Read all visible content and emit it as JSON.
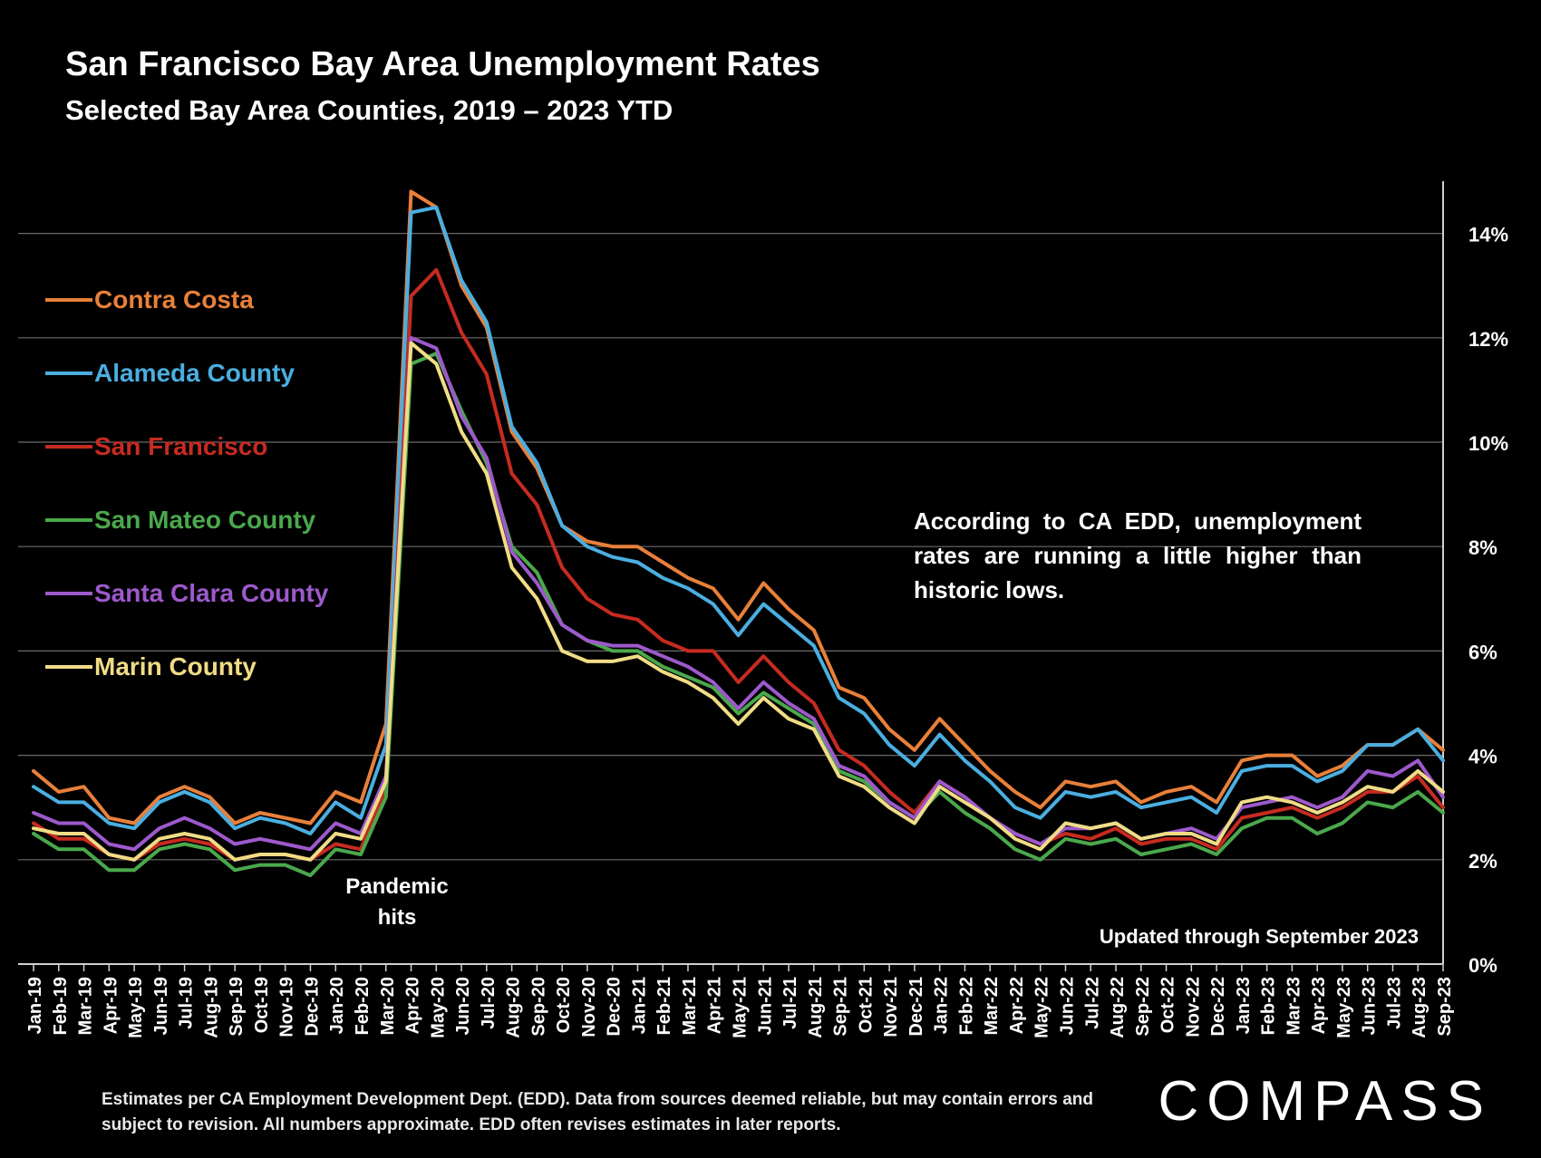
{
  "chart_data": {
    "type": "line",
    "title": "San Francisco Bay Area Unemployment Rates",
    "subtitle": "Selected Bay Area Counties, 2019 – 2023 YTD",
    "x": [
      "Jan-19",
      "Feb-19",
      "Mar-19",
      "Apr-19",
      "May-19",
      "Jun-19",
      "Jul-19",
      "Aug-19",
      "Sep-19",
      "Oct-19",
      "Nov-19",
      "Dec-19",
      "Jan-20",
      "Feb-20",
      "Mar-20",
      "Apr-20",
      "May-20",
      "Jun-20",
      "Jul-20",
      "Aug-20",
      "Sep-20",
      "Oct-20",
      "Nov-20",
      "Dec-20",
      "Jan-21",
      "Feb-21",
      "Mar-21",
      "Apr-21",
      "May-21",
      "Jun-21",
      "Jul-21",
      "Aug-21",
      "Sep-21",
      "Oct-21",
      "Nov-21",
      "Dec-21",
      "Jan-22",
      "Feb-22",
      "Mar-22",
      "Apr-22",
      "May-22",
      "Jun-22",
      "Jul-22",
      "Aug-22",
      "Sep-22",
      "Oct-22",
      "Nov-22",
      "Dec-22",
      "Jan-23",
      "Feb-23",
      "Mar-23",
      "Apr-23",
      "May-23",
      "Jun-23",
      "Jul-23",
      "Aug-23",
      "Sep-23"
    ],
    "y_ticks": [
      "0%",
      "2%",
      "4%",
      "6%",
      "8%",
      "10%",
      "12%",
      "14%"
    ],
    "ylim": [
      0,
      15
    ],
    "grid": true,
    "legend_position": "left",
    "series": [
      {
        "name": "Contra Costa",
        "color": "#e8803a",
        "values": [
          3.7,
          3.3,
          3.4,
          2.8,
          2.7,
          3.2,
          3.4,
          3.2,
          2.7,
          2.9,
          2.8,
          2.7,
          3.3,
          3.1,
          4.6,
          14.8,
          14.5,
          13.0,
          12.2,
          10.2,
          9.5,
          8.4,
          8.1,
          8.0,
          8.0,
          7.7,
          7.4,
          7.2,
          6.6,
          7.3,
          6.8,
          6.4,
          5.3,
          5.1,
          4.5,
          4.1,
          4.7,
          4.2,
          3.7,
          3.3,
          3.0,
          3.5,
          3.4,
          3.5,
          3.1,
          3.3,
          3.4,
          3.1,
          3.9,
          4.0,
          4.0,
          3.6,
          3.8,
          4.2,
          4.2,
          4.5,
          4.1
        ]
      },
      {
        "name": "Alameda County",
        "color": "#4aaee0",
        "values": [
          3.4,
          3.1,
          3.1,
          2.7,
          2.6,
          3.1,
          3.3,
          3.1,
          2.6,
          2.8,
          2.7,
          2.5,
          3.1,
          2.8,
          4.2,
          14.4,
          14.5,
          13.1,
          12.3,
          10.3,
          9.6,
          8.4,
          8.0,
          7.8,
          7.7,
          7.4,
          7.2,
          6.9,
          6.3,
          6.9,
          6.5,
          6.1,
          5.1,
          4.8,
          4.2,
          3.8,
          4.4,
          3.9,
          3.5,
          3.0,
          2.8,
          3.3,
          3.2,
          3.3,
          3.0,
          3.1,
          3.2,
          2.9,
          3.7,
          3.8,
          3.8,
          3.5,
          3.7,
          4.2,
          4.2,
          4.5,
          3.9
        ]
      },
      {
        "name": "San Francisco",
        "color": "#c62b20",
        "values": [
          2.7,
          2.4,
          2.4,
          2.1,
          2.0,
          2.3,
          2.4,
          2.3,
          2.0,
          2.1,
          2.1,
          2.0,
          2.3,
          2.2,
          3.4,
          12.8,
          13.3,
          12.1,
          11.3,
          9.4,
          8.8,
          7.6,
          7.0,
          6.7,
          6.6,
          6.2,
          6.0,
          6.0,
          5.4,
          5.9,
          5.4,
          5.0,
          4.1,
          3.8,
          3.3,
          2.9,
          3.5,
          3.2,
          2.8,
          2.5,
          2.3,
          2.5,
          2.4,
          2.6,
          2.3,
          2.4,
          2.4,
          2.2,
          2.8,
          2.9,
          3.0,
          2.8,
          3.0,
          3.3,
          3.3,
          3.6,
          3.0
        ]
      },
      {
        "name": "San Mateo County",
        "color": "#4aa84c",
        "values": [
          2.5,
          2.2,
          2.2,
          1.8,
          1.8,
          2.2,
          2.3,
          2.2,
          1.8,
          1.9,
          1.9,
          1.7,
          2.2,
          2.1,
          3.2,
          11.5,
          11.7,
          10.6,
          9.6,
          8.0,
          7.5,
          6.5,
          6.2,
          6.0,
          6.0,
          5.7,
          5.5,
          5.3,
          4.8,
          5.2,
          4.9,
          4.6,
          3.7,
          3.5,
          3.1,
          2.8,
          3.3,
          2.9,
          2.6,
          2.2,
          2.0,
          2.4,
          2.3,
          2.4,
          2.1,
          2.2,
          2.3,
          2.1,
          2.6,
          2.8,
          2.8,
          2.5,
          2.7,
          3.1,
          3.0,
          3.3,
          2.9
        ]
      },
      {
        "name": "Santa Clara County",
        "color": "#9d59cc",
        "values": [
          2.9,
          2.7,
          2.7,
          2.3,
          2.2,
          2.6,
          2.8,
          2.6,
          2.3,
          2.4,
          2.3,
          2.2,
          2.7,
          2.5,
          3.6,
          12.0,
          11.8,
          10.5,
          9.7,
          7.9,
          7.3,
          6.5,
          6.2,
          6.1,
          6.1,
          5.9,
          5.7,
          5.4,
          4.9,
          5.4,
          5.0,
          4.7,
          3.8,
          3.6,
          3.1,
          2.8,
          3.5,
          3.2,
          2.8,
          2.5,
          2.3,
          2.6,
          2.6,
          2.7,
          2.4,
          2.5,
          2.6,
          2.4,
          3.0,
          3.1,
          3.2,
          3.0,
          3.2,
          3.7,
          3.6,
          3.9,
          3.2
        ]
      },
      {
        "name": "Marin County",
        "color": "#f0dc85",
        "values": [
          2.6,
          2.5,
          2.5,
          2.1,
          2.0,
          2.4,
          2.5,
          2.4,
          2.0,
          2.1,
          2.1,
          2.0,
          2.5,
          2.4,
          3.5,
          11.9,
          11.5,
          10.2,
          9.4,
          7.6,
          7.0,
          6.0,
          5.8,
          5.8,
          5.9,
          5.6,
          5.4,
          5.1,
          4.6,
          5.1,
          4.7,
          4.5,
          3.6,
          3.4,
          3.0,
          2.7,
          3.4,
          3.1,
          2.8,
          2.4,
          2.2,
          2.7,
          2.6,
          2.7,
          2.4,
          2.5,
          2.5,
          2.3,
          3.1,
          3.2,
          3.1,
          2.9,
          3.1,
          3.4,
          3.3,
          3.7,
          3.3
        ]
      }
    ]
  },
  "annotations": {
    "edd_note": "According to CA EDD, unemployment rates are running a little higher than historic lows.",
    "pandemic_line1": "Pandemic",
    "pandemic_line2": "hits",
    "updated": "Updated through September 2023"
  },
  "footnote": "Estimates per CA Employment Development Dept. (EDD). Data from sources deemed reliable, but may contain errors and subject to revision. All numbers approximate.  EDD often revises estimates in later reports.",
  "brand": "COMPASS"
}
